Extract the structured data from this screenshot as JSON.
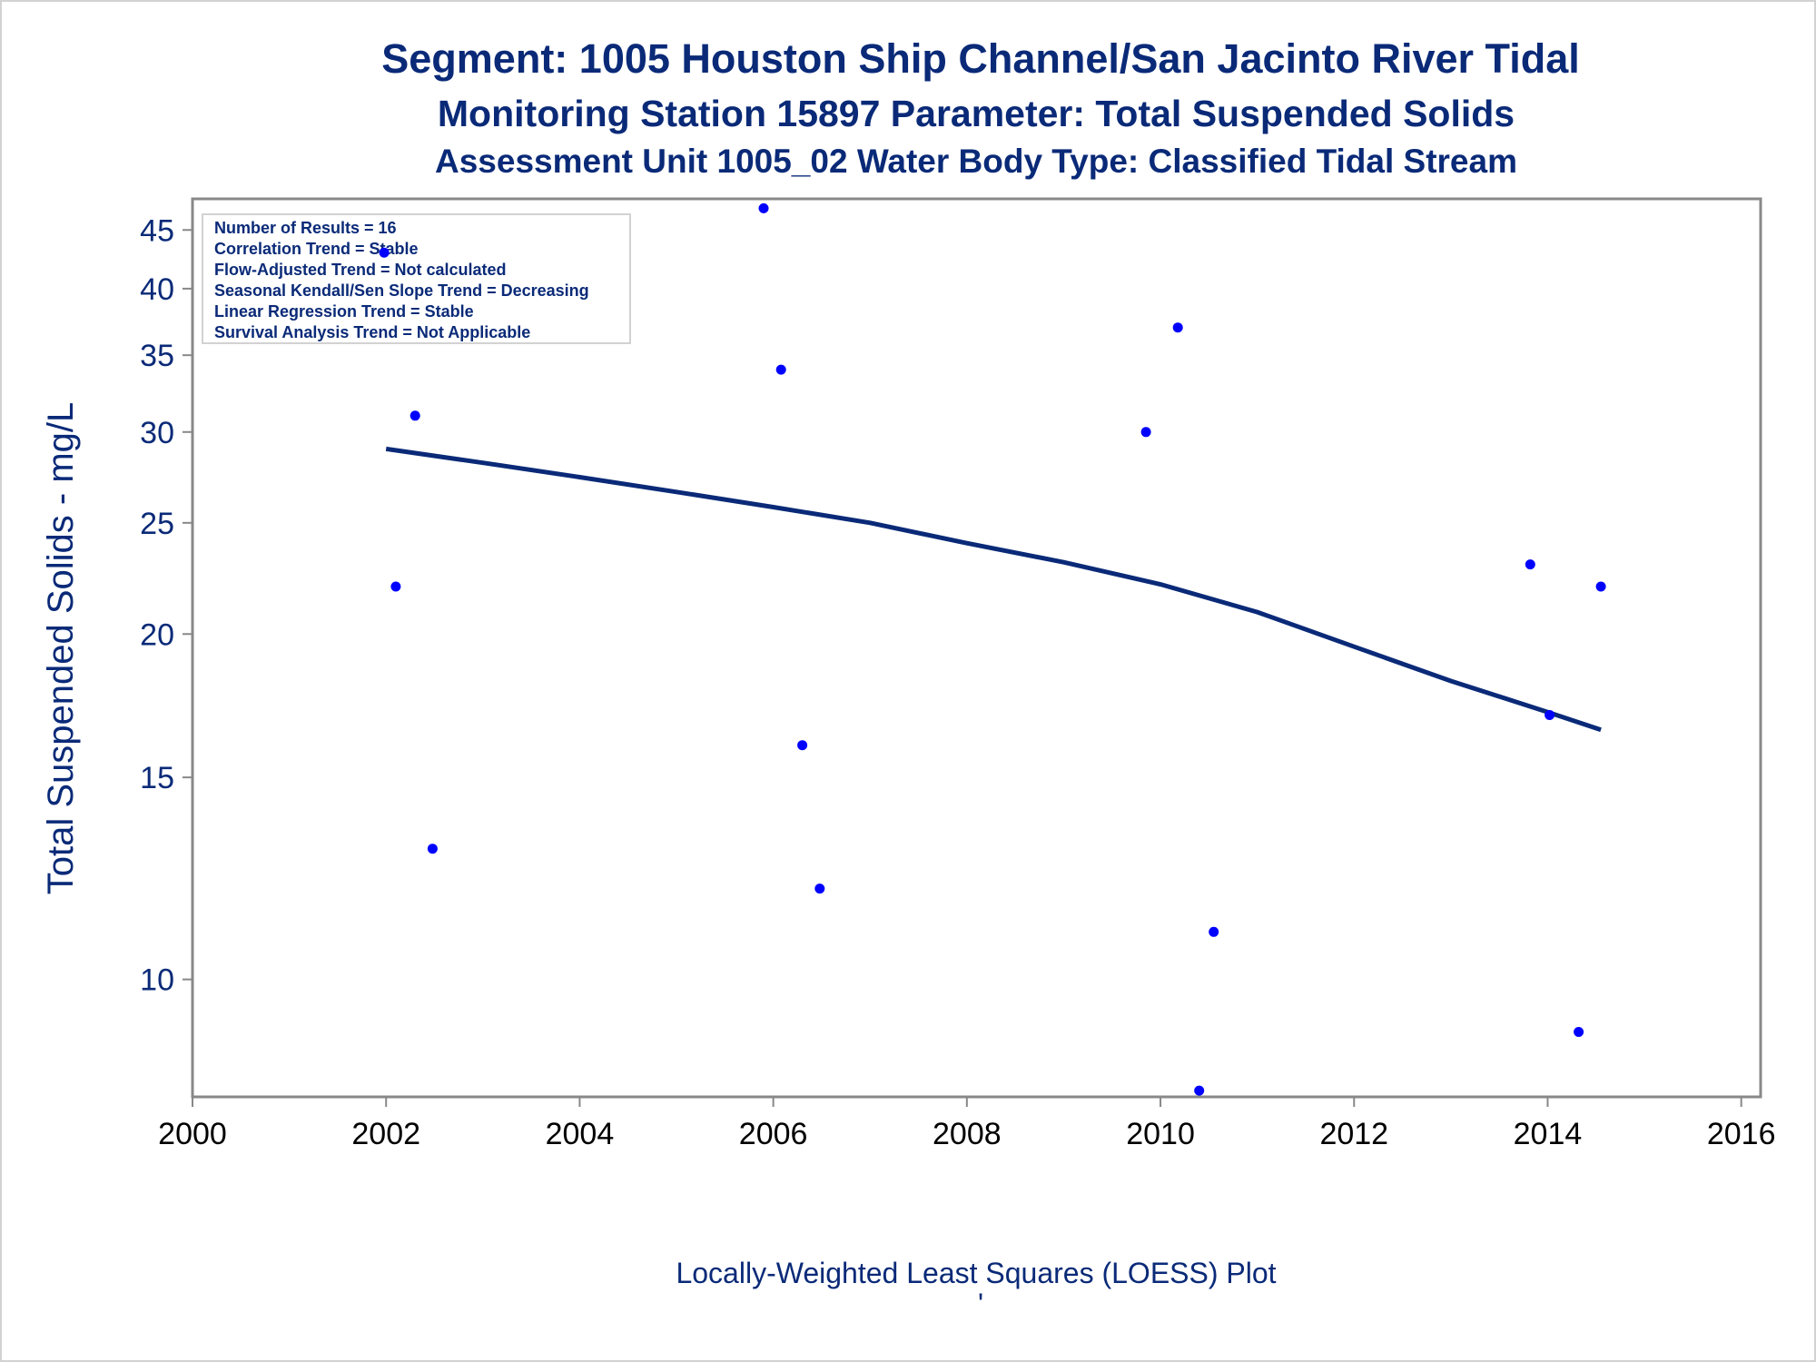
{
  "colors": {
    "text": "#0a2a78",
    "trend_line": "#0a2a78",
    "points": "#0000ff",
    "axis": "#888888",
    "frame": "#d2d2d2"
  },
  "chart_data": {
    "type": "scatter",
    "title": "Segment: 1005  Houston Ship Channel/San Jacinto River Tidal",
    "subtitle": "Monitoring Station 15897 Parameter: Total Suspended Solids",
    "subtitle2": "Assessment Unit 1005_02   Water Body Type: Classified Tidal Stream",
    "xlabel": "",
    "ylabel": "Total Suspended Solids - mg/L",
    "footnote": "Locally-Weighted Least Squares (LOESS) Plot",
    "footnote_mark": "'",
    "y_scale": "log",
    "xlim": [
      2000,
      2016.2
    ],
    "ylim": [
      7.9,
      47.9
    ],
    "x_ticks": [
      2000,
      2002,
      2004,
      2006,
      2008,
      2010,
      2012,
      2014,
      2016
    ],
    "y_ticks": [
      10,
      15,
      20,
      25,
      30,
      35,
      40,
      45
    ],
    "grid": false,
    "stats_box": {
      "placement": "top-left",
      "lines": [
        "Number of Results = 16",
        "Correlation Trend = Stable",
        "Flow-Adjusted Trend = Not calculated",
        "Seasonal Kendall/Sen Slope Trend = Decreasing",
        "Linear Regression Trend = Stable",
        "Survival Analysis Trend = Not Applicable"
      ]
    },
    "series": [
      {
        "type": "scatter",
        "points": [
          {
            "x": 2001.98,
            "y": 43
          },
          {
            "x": 2002.1,
            "y": 22
          },
          {
            "x": 2002.3,
            "y": 31
          },
          {
            "x": 2002.48,
            "y": 13
          },
          {
            "x": 2005.9,
            "y": 47
          },
          {
            "x": 2006.08,
            "y": 34
          },
          {
            "x": 2006.3,
            "y": 16
          },
          {
            "x": 2006.48,
            "y": 12
          },
          {
            "x": 2009.85,
            "y": 30
          },
          {
            "x": 2010.18,
            "y": 37
          },
          {
            "x": 2010.4,
            "y": 8
          },
          {
            "x": 2010.55,
            "y": 11
          },
          {
            "x": 2013.82,
            "y": 23
          },
          {
            "x": 2014.02,
            "y": 17
          },
          {
            "x": 2014.32,
            "y": 9
          },
          {
            "x": 2014.55,
            "y": 22
          }
        ]
      },
      {
        "type": "line",
        "x": [
          2002.0,
          2003.0,
          2004.0,
          2005.0,
          2006.0,
          2007.0,
          2008.0,
          2009.0,
          2010.0,
          2011.0,
          2012.0,
          2013.0,
          2014.0,
          2014.55
        ],
        "y": [
          29.0,
          28.2,
          27.4,
          26.6,
          25.8,
          25.0,
          24.0,
          23.1,
          22.1,
          20.9,
          19.5,
          18.2,
          17.1,
          16.5
        ]
      }
    ]
  }
}
